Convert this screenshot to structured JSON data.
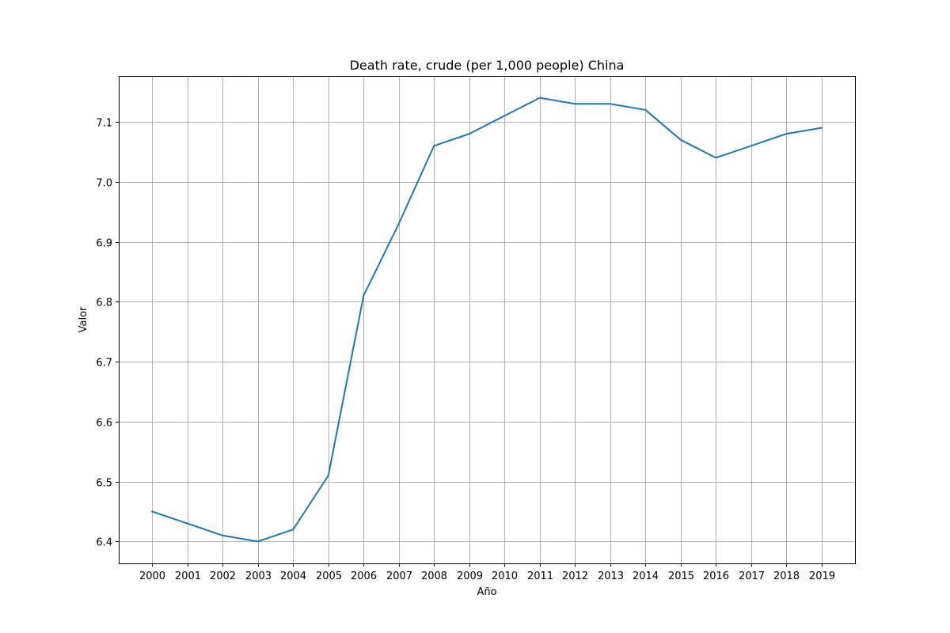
{
  "chart_data": {
    "type": "line",
    "title": "Death rate, crude (per 1,000 people) China",
    "xlabel": "Año",
    "ylabel": "Valor",
    "x": [
      2000,
      2001,
      2002,
      2003,
      2004,
      2005,
      2006,
      2007,
      2008,
      2009,
      2010,
      2011,
      2012,
      2013,
      2014,
      2015,
      2016,
      2017,
      2018,
      2019
    ],
    "series": [
      {
        "values": [
          6.45,
          6.43,
          6.41,
          6.4,
          6.42,
          6.51,
          6.81,
          6.93,
          7.06,
          7.08,
          7.11,
          7.14,
          7.13,
          7.13,
          7.12,
          7.07,
          7.04,
          7.06,
          7.08,
          7.09
        ],
        "color": "#1f77b4"
      }
    ],
    "xlim": [
      1999.05,
      2019.95
    ],
    "ylim": [
      6.3635,
      7.1765
    ],
    "yticks": [
      "6.4",
      "6.5",
      "6.6",
      "6.7",
      "6.8",
      "6.9",
      "7.0",
      "7.1"
    ],
    "xticks": [
      "2000",
      "2001",
      "2002",
      "2003",
      "2004",
      "2005",
      "2006",
      "2007",
      "2008",
      "2009",
      "2010",
      "2011",
      "2012",
      "2013",
      "2014",
      "2015",
      "2016",
      "2017",
      "2018",
      "2019"
    ],
    "grid": true,
    "legend": "none"
  }
}
